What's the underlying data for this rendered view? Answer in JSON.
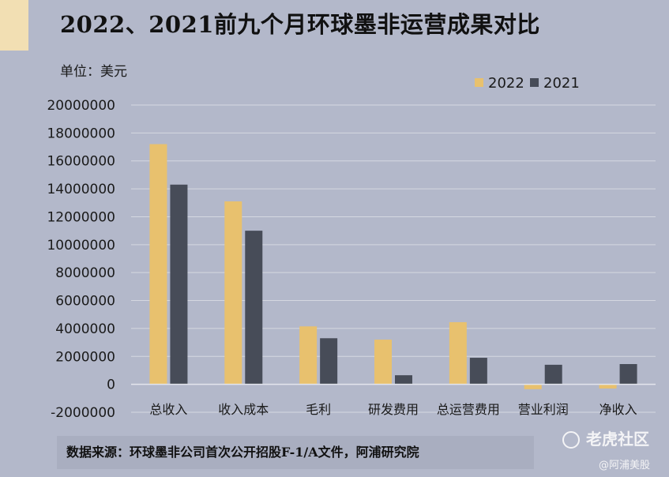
{
  "title": "2022、2021前九个月环球墨非运营成果对比",
  "unit_label": "单位：美元",
  "source": "数据来源：环球墨非公司首次公开招股F-1/A文件，阿浦研究院",
  "watermark": {
    "brand": "老虎社区",
    "handle": "@阿浦美股"
  },
  "colors": {
    "bg": "#b3b8ca",
    "series_2022": "#e8c16e",
    "series_2021": "#474c58",
    "grid": "#d5d8e1",
    "text": "#1a1a1a"
  },
  "chart_data": {
    "type": "bar",
    "title": "2022、2021前九个月环球墨非运营成果对比",
    "ylabel": "单位：美元",
    "categories": [
      "总收入",
      "收入成本",
      "毛利",
      "研发费用",
      "总运营费用",
      "营业利润",
      "净收入"
    ],
    "series": [
      {
        "name": "2022",
        "values": [
          17200000,
          13100000,
          4150000,
          3200000,
          4450000,
          -350000,
          -300000
        ]
      },
      {
        "name": "2021",
        "values": [
          14300000,
          11000000,
          3300000,
          650000,
          1900000,
          1400000,
          1450000
        ]
      }
    ],
    "ylim": [
      -2000000,
      20000000
    ],
    "yticks": [
      20000000,
      18000000,
      16000000,
      14000000,
      12000000,
      10000000,
      8000000,
      6000000,
      4000000,
      2000000,
      0,
      -2000000
    ],
    "ytick_labels": [
      "20000000",
      "18000000",
      "16000000",
      "14000000",
      "12000000",
      "10000000",
      "8000000",
      "6000000",
      "4000000",
      "2000000",
      "0",
      "-2000000"
    ],
    "legend": {
      "position": "top-right",
      "entries": [
        "2022",
        "2021"
      ]
    },
    "grid": true
  }
}
